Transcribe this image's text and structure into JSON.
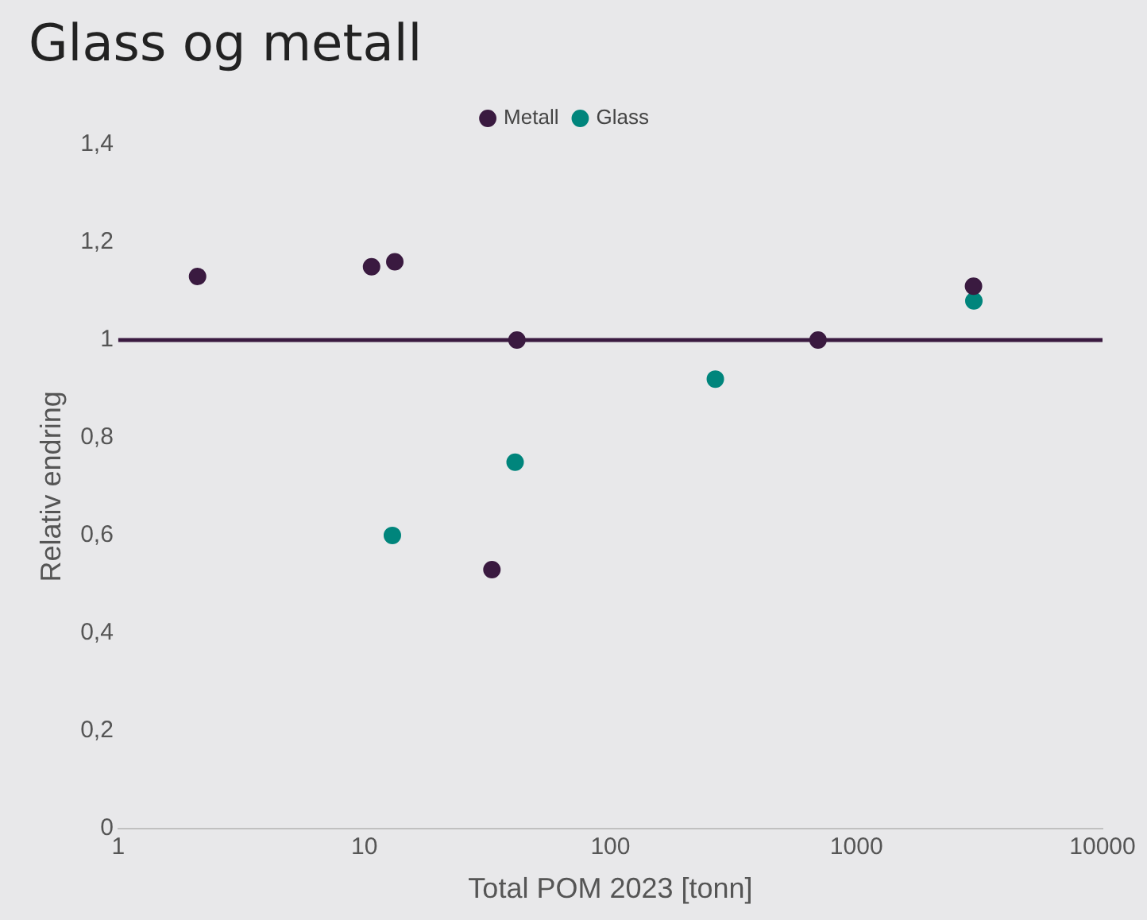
{
  "chart_data": {
    "type": "scatter",
    "title": "Glass og metall",
    "xlabel": "Total POM 2023 [tonn]",
    "ylabel": "Relativ endring",
    "series": [
      {
        "name": "Metall",
        "color": "#3a1a40",
        "x": [
          2.1,
          10.7,
          13.3,
          41.7,
          33,
          698,
          2990
        ],
        "values": [
          1.13,
          1.15,
          1.16,
          1.0,
          0.53,
          1.0,
          1.11
        ]
      },
      {
        "name": "Glass",
        "color": "#00857c",
        "x": [
          13,
          41,
          267,
          3000
        ],
        "values": [
          0.6,
          0.75,
          0.92,
          1.08
        ]
      }
    ],
    "log": "x",
    "xlim": [
      1,
      10000
    ],
    "xticks": [
      1,
      10,
      100,
      1000,
      10000
    ],
    "ylim": [
      0,
      1.4
    ],
    "yticks": [
      0,
      {
        "value": 0.2,
        "label": "0,2"
      },
      {
        "value": 0.4,
        "label": "0,4"
      },
      {
        "value": 0.6,
        "label": "0,6"
      },
      {
        "value": 0.8,
        "label": "0,8"
      },
      1,
      {
        "value": 1.2,
        "label": "1,2"
      },
      {
        "value": 1.4,
        "label": "1,4"
      }
    ],
    "ref_lines": [
      {
        "axis": "y",
        "value": 1,
        "label": null,
        "color": "#3a1a40"
      }
    ],
    "grid": false,
    "legend": "top",
    "marker": "circle"
  }
}
